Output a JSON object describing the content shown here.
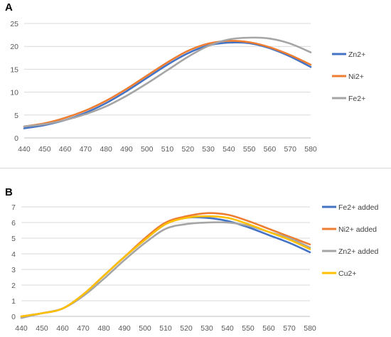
{
  "chart_data": [
    {
      "panel_label": "A",
      "type": "line",
      "title": "",
      "xlabel": "",
      "ylabel": "",
      "xlim": [
        440,
        580
      ],
      "ylim": [
        0,
        25
      ],
      "x_ticks": [
        440,
        450,
        460,
        470,
        480,
        490,
        500,
        510,
        520,
        530,
        540,
        550,
        560,
        570,
        580
      ],
      "y_ticks": [
        0,
        5,
        10,
        15,
        20,
        25
      ],
      "grid": "horizontal",
      "legend_position": "right",
      "series": [
        {
          "name": "Zn2+",
          "color": "#4472C4",
          "x": [
            440,
            450,
            460,
            470,
            480,
            490,
            500,
            510,
            520,
            530,
            540,
            550,
            560,
            570,
            580
          ],
          "y": [
            2.1,
            2.8,
            3.9,
            5.5,
            7.6,
            10.2,
            13.1,
            16.0,
            18.5,
            20.2,
            20.8,
            20.7,
            19.6,
            17.8,
            15.5
          ]
        },
        {
          "name": "Ni2+",
          "color": "#ED7D31",
          "x": [
            440,
            450,
            460,
            470,
            480,
            490,
            500,
            510,
            520,
            530,
            540,
            550,
            560,
            570,
            580
          ],
          "y": [
            2.5,
            3.2,
            4.4,
            6.0,
            8.1,
            10.7,
            13.6,
            16.5,
            19.0,
            20.6,
            21.2,
            20.9,
            19.8,
            18.1,
            16.0
          ]
        },
        {
          "name": "Fe2+",
          "color": "#A5A5A5",
          "x": [
            440,
            450,
            460,
            470,
            480,
            490,
            500,
            510,
            520,
            530,
            540,
            550,
            560,
            570,
            580
          ],
          "y": [
            2.5,
            3.0,
            3.9,
            5.2,
            6.9,
            9.2,
            11.9,
            14.8,
            17.7,
            20.1,
            21.5,
            21.9,
            21.7,
            20.6,
            18.7
          ]
        }
      ]
    },
    {
      "panel_label": "B",
      "type": "line",
      "title": "",
      "xlabel": "",
      "ylabel": "",
      "xlim": [
        440,
        580
      ],
      "ylim": [
        0,
        7
      ],
      "x_ticks": [
        440,
        450,
        460,
        470,
        480,
        490,
        500,
        510,
        520,
        530,
        540,
        550,
        560,
        570,
        580
      ],
      "y_ticks": [
        0,
        1,
        2,
        3,
        4,
        5,
        6,
        7
      ],
      "grid": "horizontal",
      "legend_position": "right",
      "series": [
        {
          "name": "Fe2+ added",
          "color": "#4472C4",
          "x": [
            440,
            450,
            460,
            470,
            480,
            490,
            500,
            510,
            520,
            530,
            540,
            550,
            560,
            570,
            580
          ],
          "y": [
            0.0,
            0.2,
            0.5,
            1.4,
            2.6,
            3.8,
            4.9,
            5.9,
            6.3,
            6.3,
            6.1,
            5.7,
            5.2,
            4.7,
            4.1
          ]
        },
        {
          "name": "Ni2+ added",
          "color": "#ED7D31",
          "x": [
            440,
            450,
            460,
            470,
            480,
            490,
            500,
            510,
            520,
            530,
            540,
            550,
            560,
            570,
            580
          ],
          "y": [
            0.0,
            0.2,
            0.5,
            1.4,
            2.6,
            3.8,
            5.0,
            6.0,
            6.4,
            6.6,
            6.5,
            6.1,
            5.6,
            5.1,
            4.6
          ]
        },
        {
          "name": "Zn2+ added",
          "color": "#A5A5A5",
          "x": [
            440,
            450,
            460,
            470,
            480,
            490,
            500,
            510,
            520,
            530,
            540,
            550,
            560,
            570,
            580
          ],
          "y": [
            -0.1,
            0.2,
            0.5,
            1.3,
            2.4,
            3.6,
            4.7,
            5.6,
            5.9,
            6.0,
            6.0,
            5.8,
            5.4,
            5.0,
            4.4
          ]
        },
        {
          "name": "Cu2+",
          "color": "#FFC000",
          "x": [
            440,
            450,
            460,
            470,
            480,
            490,
            500,
            510,
            520,
            530,
            540,
            550,
            560,
            570,
            580
          ],
          "y": [
            0.0,
            0.2,
            0.5,
            1.4,
            2.6,
            3.8,
            4.9,
            5.9,
            6.3,
            6.4,
            6.3,
            5.9,
            5.4,
            4.9,
            4.3
          ]
        }
      ]
    }
  ]
}
